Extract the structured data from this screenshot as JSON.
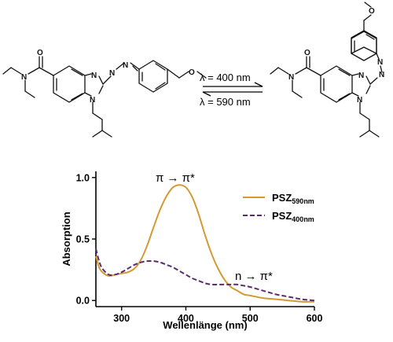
{
  "molecules": [
    {
      "atoms": [
        "O",
        "N",
        "N",
        "N",
        "N",
        "N",
        "O"
      ]
    },
    {
      "atoms": [
        "O",
        "N",
        "N",
        "N",
        "N",
        "N",
        "O"
      ]
    }
  ],
  "reaction": {
    "forward": "λ = 400 nm",
    "backward": "λ = 590 nm"
  },
  "annotations": {
    "pi_pi": "π → π*",
    "n_pi": "n → π*"
  },
  "colors": {
    "series_590": "#D49A32",
    "series_400": "#5E2A6E"
  },
  "chart_data": {
    "type": "line",
    "title": "",
    "xlabel": "Wellenlänge  (nm)",
    "ylabel": "Absorption",
    "xlim": [
      260,
      600
    ],
    "ylim": [
      -0.05,
      1.05
    ],
    "x_ticks": [
      300,
      400,
      500,
      600
    ],
    "y_ticks": [
      0.0,
      0.5,
      1.0
    ],
    "x_tick_labels": [
      "300",
      "400",
      "500",
      "600"
    ],
    "y_tick_labels": [
      "0.0",
      "0.5",
      "1.0"
    ],
    "legend_position": "top-right",
    "series": [
      {
        "name": "PSZ",
        "name_sub": "590nm",
        "style": "solid",
        "x": [
          260,
          265,
          270,
          280,
          290,
          300,
          310,
          320,
          330,
          340,
          350,
          360,
          370,
          380,
          390,
          400,
          410,
          420,
          430,
          440,
          450,
          460,
          470,
          480,
          490,
          500,
          520,
          540,
          560,
          580,
          600
        ],
        "y": [
          0.36,
          0.27,
          0.23,
          0.2,
          0.21,
          0.22,
          0.23,
          0.26,
          0.33,
          0.45,
          0.6,
          0.74,
          0.85,
          0.92,
          0.94,
          0.92,
          0.84,
          0.7,
          0.53,
          0.38,
          0.26,
          0.17,
          0.11,
          0.08,
          0.05,
          0.04,
          0.02,
          0.01,
          0.0,
          -0.01,
          -0.01
        ]
      },
      {
        "name": "PSZ",
        "name_sub": "400nm",
        "style": "dashed",
        "x": [
          260,
          265,
          270,
          280,
          290,
          300,
          310,
          320,
          330,
          340,
          350,
          360,
          370,
          380,
          390,
          400,
          410,
          420,
          430,
          440,
          450,
          460,
          470,
          480,
          490,
          500,
          520,
          540,
          560,
          580,
          600
        ],
        "y": [
          0.42,
          0.32,
          0.26,
          0.21,
          0.21,
          0.23,
          0.26,
          0.29,
          0.31,
          0.32,
          0.32,
          0.31,
          0.29,
          0.27,
          0.24,
          0.21,
          0.18,
          0.16,
          0.14,
          0.13,
          0.13,
          0.13,
          0.13,
          0.13,
          0.12,
          0.11,
          0.08,
          0.05,
          0.03,
          0.01,
          0.0
        ]
      }
    ]
  }
}
